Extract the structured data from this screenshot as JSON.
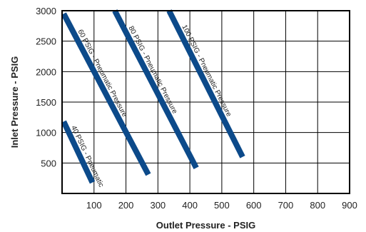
{
  "chart_data": {
    "type": "line",
    "xlabel": "Outlet Pressure - PSIG",
    "ylabel": "Inlet Pressure - PSIG",
    "xlim": [
      0,
      900
    ],
    "ylim": [
      0,
      3000
    ],
    "x_ticks": [
      "100",
      "200",
      "300",
      "400",
      "500",
      "600",
      "700",
      "800",
      "900"
    ],
    "y_ticks": [
      "500",
      "1000",
      "1500",
      "2000",
      "2500",
      "3000"
    ],
    "grid": true,
    "line_color": "#0c4a8a",
    "series": [
      {
        "name": "40 PSIG - Pneumatic",
        "points": [
          [
            5,
            1180
          ],
          [
            95,
            180
          ]
        ]
      },
      {
        "name": "60 PSIG - Pneumatic Pressure",
        "points": [
          [
            5,
            2950
          ],
          [
            270,
            310
          ]
        ]
      },
      {
        "name": "80 PSIG - Pneumatic Pressure",
        "points": [
          [
            165,
            3000
          ],
          [
            420,
            420
          ]
        ]
      },
      {
        "name": "100 PSIG - Pneumatic Pressure",
        "points": [
          [
            335,
            3000
          ],
          [
            565,
            600
          ]
        ]
      }
    ]
  }
}
